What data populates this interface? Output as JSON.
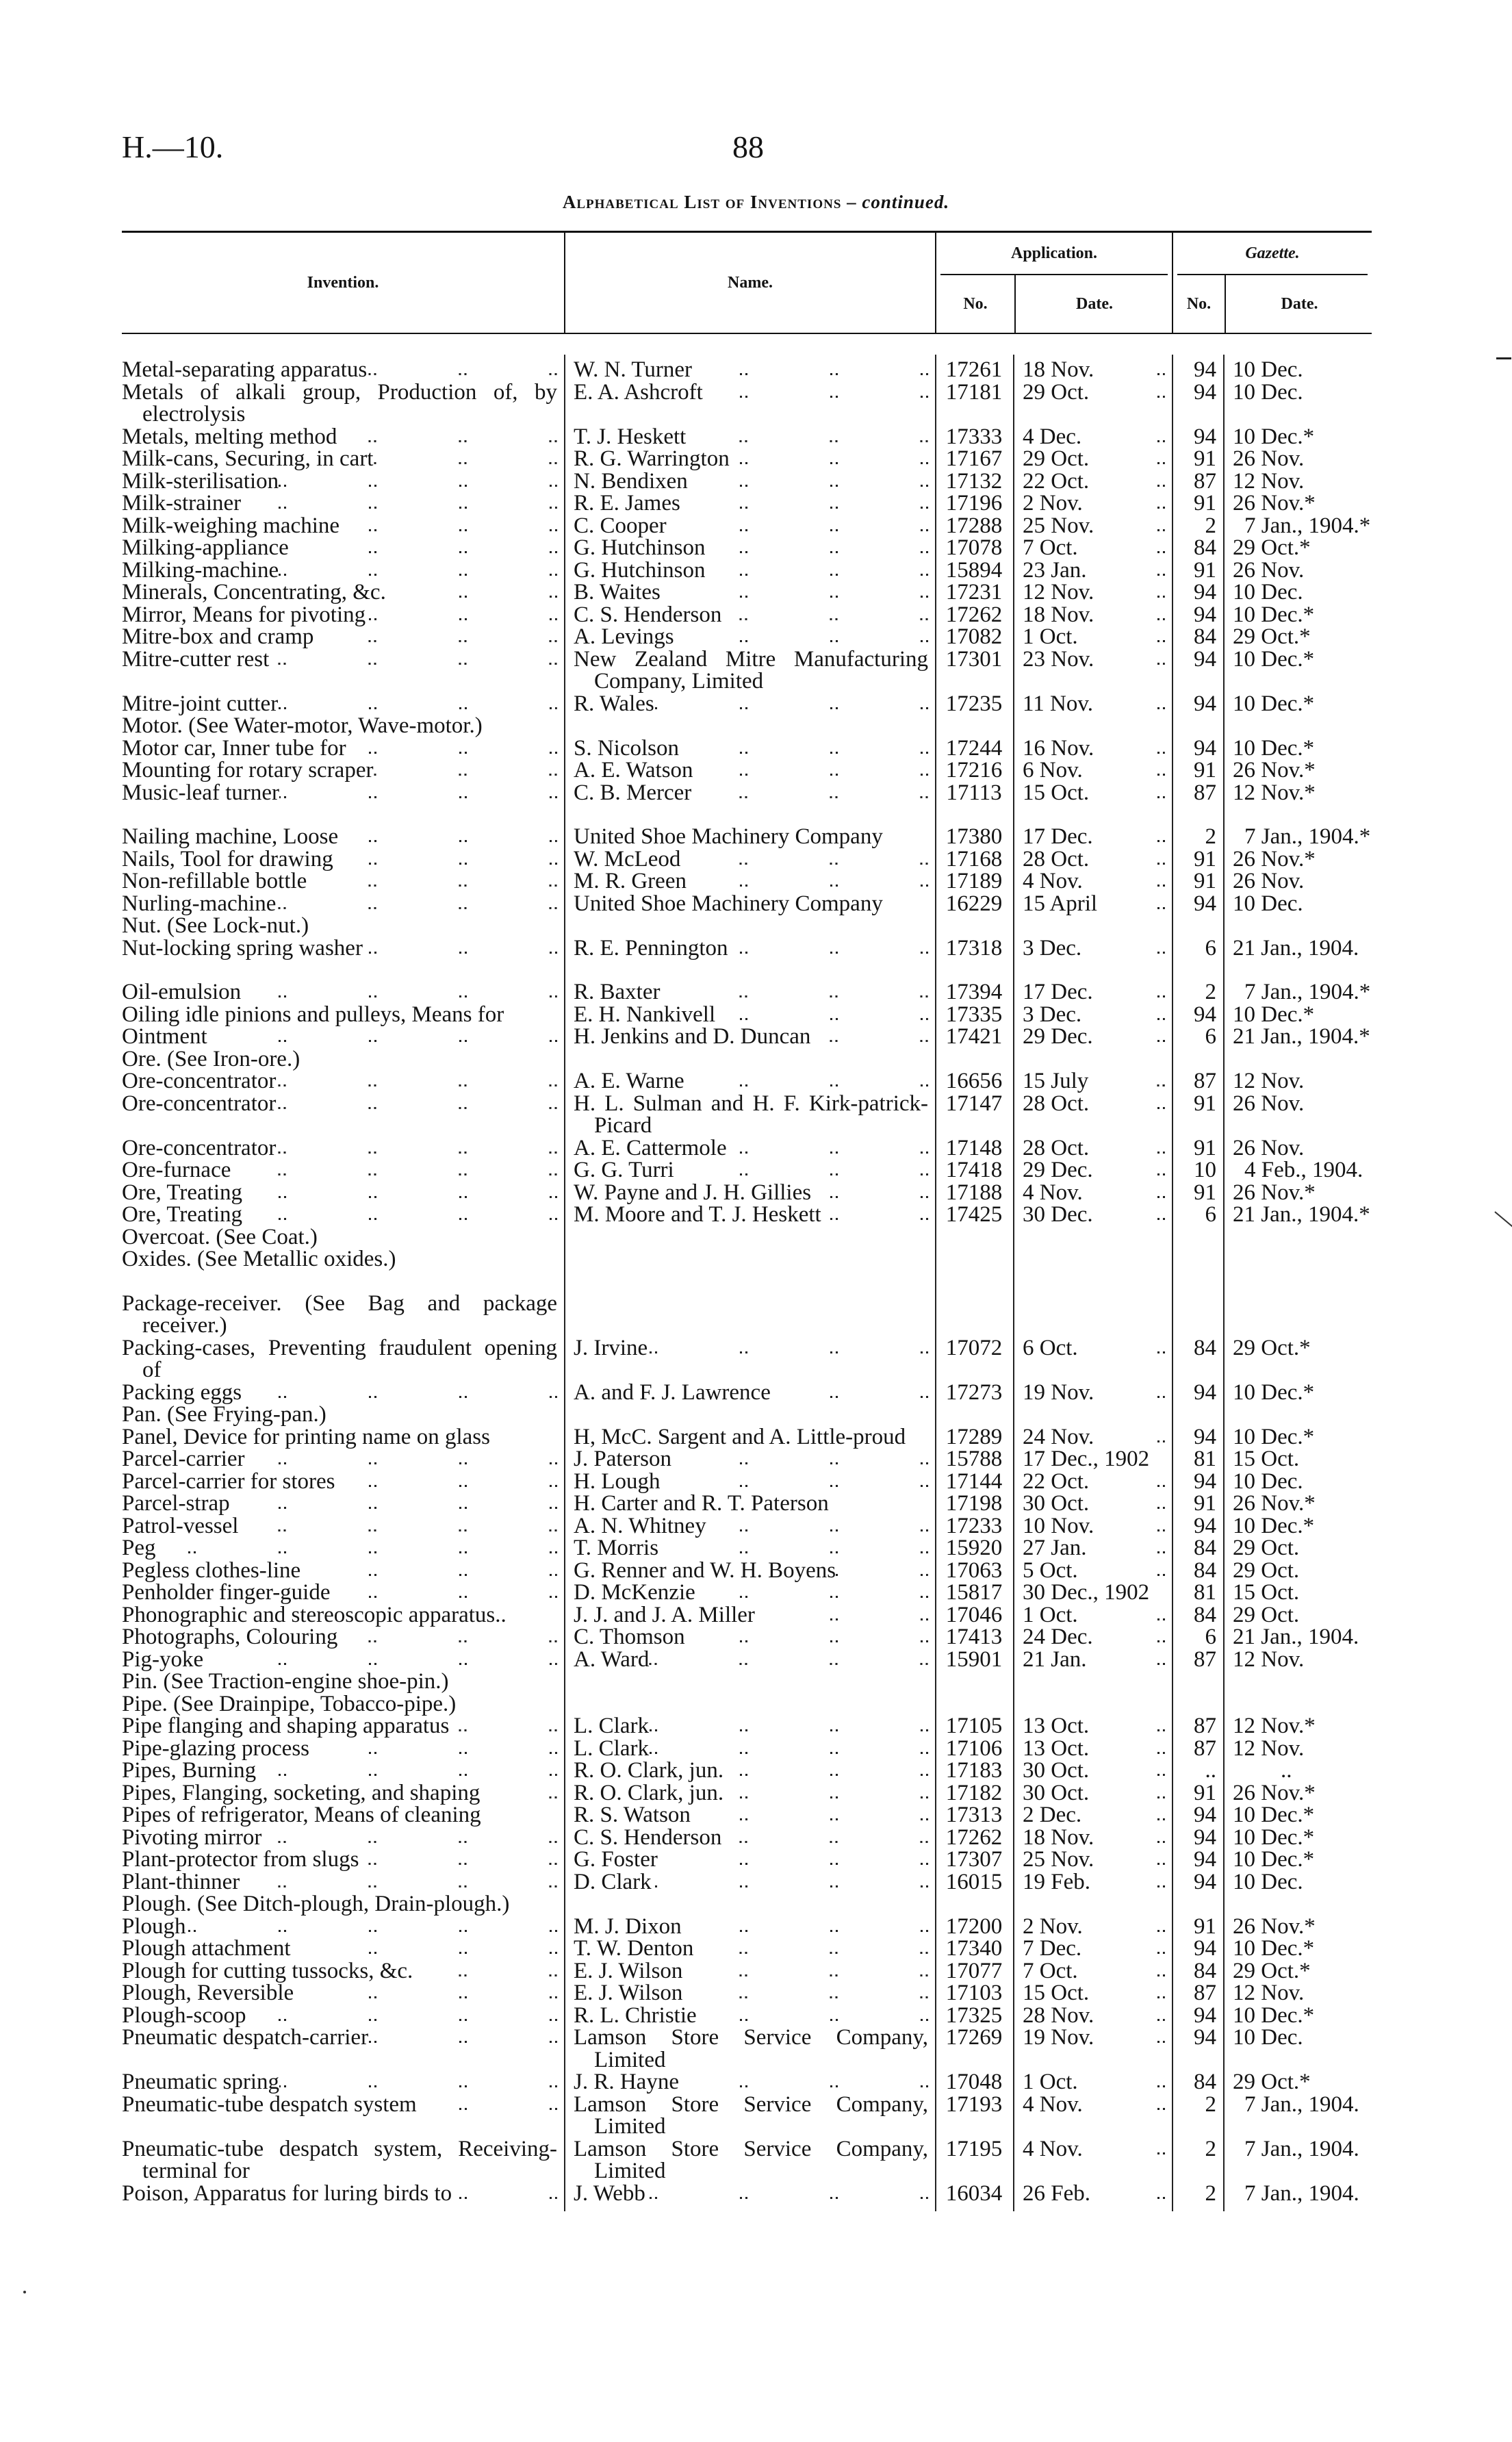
{
  "header": {
    "ref": "H.—10.",
    "page": "88"
  },
  "subtitle": {
    "main": "Alphabetical List of Inventions",
    "separator": " – ",
    "cont": "continued."
  },
  "columns": {
    "invention": "Invention.",
    "name": "Name.",
    "application": "Application.",
    "gazette": "Gazette.",
    "no": "No.",
    "date": "Date."
  },
  "groups": [
    {
      "rows": [
        {
          "invention": "Metal-separating apparatus",
          "name": "W. N. Turner",
          "app_no": "17261",
          "app_date": "18 Nov.",
          "gaz_no": "94",
          "gaz_date": "10 Dec."
        },
        {
          "invention": "Metals of alkali group, Production of, by electrolysis",
          "name": "E. A. Ashcroft",
          "app_no": "17181",
          "app_date": "29 Oct.",
          "gaz_no": "94",
          "gaz_date": "10 Dec."
        },
        {
          "invention": "Metals, melting method",
          "name": "T. J. Heskett",
          "app_no": "17333",
          "app_date": "4 Dec.",
          "gaz_no": "94",
          "gaz_date": "10 Dec.*"
        },
        {
          "invention": "Milk-cans, Securing, in cart",
          "name": "R. G. Warrington",
          "app_no": "17167",
          "app_date": "29 Oct.",
          "gaz_no": "91",
          "gaz_date": "26 Nov."
        },
        {
          "invention": "Milk-sterilisation",
          "name": "N. Bendixen",
          "app_no": "17132",
          "app_date": "22 Oct.",
          "gaz_no": "87",
          "gaz_date": "12 Nov."
        },
        {
          "invention": "Milk-strainer",
          "name": "R. E. James",
          "app_no": "17196",
          "app_date": "2 Nov.",
          "gaz_no": "91",
          "gaz_date": "26 Nov.*"
        },
        {
          "invention": "Milk-weighing machine",
          "name": "C. Cooper",
          "app_no": "17288",
          "app_date": "25 Nov.",
          "gaz_no": "2",
          "gaz_date": "7 Jan., 1904.*"
        },
        {
          "invention": "Milking-appliance",
          "name": "G. Hutchinson",
          "app_no": "17078",
          "app_date": "7 Oct.",
          "gaz_no": "84",
          "gaz_date": "29 Oct.*"
        },
        {
          "invention": "Milking-machine",
          "name": "G. Hutchinson",
          "app_no": "15894",
          "app_date": "23 Jan.",
          "gaz_no": "91",
          "gaz_date": "26 Nov."
        },
        {
          "invention": "Minerals, Concentrating, &c.",
          "name": "B. Waites",
          "app_no": "17231",
          "app_date": "12 Nov.",
          "gaz_no": "94",
          "gaz_date": "10 Dec."
        },
        {
          "invention": "Mirror, Means for pivoting",
          "name": "C. S. Henderson",
          "app_no": "17262",
          "app_date": "18 Nov.",
          "gaz_no": "94",
          "gaz_date": "10 Dec.*"
        },
        {
          "invention": "Mitre-box and cramp",
          "name": "A. Levings",
          "app_no": "17082",
          "app_date": "1 Oct.",
          "gaz_no": "84",
          "gaz_date": "29 Oct.*"
        },
        {
          "invention": "Mitre-cutter rest",
          "name": "New Zealand Mitre Manufacturing Company, Limited",
          "app_no": "17301",
          "app_date": "23 Nov.",
          "gaz_no": "94",
          "gaz_date": "10 Dec.*"
        },
        {
          "invention": "Mitre-joint cutter",
          "name": "R. Wales",
          "app_no": "17235",
          "app_date": "11 Nov.",
          "gaz_no": "94",
          "gaz_date": "10 Dec.*"
        },
        {
          "invention": "Motor. (See Water-motor, Wave-motor.)"
        },
        {
          "invention": "Motor car, Inner tube for",
          "name": "S. Nicolson",
          "app_no": "17244",
          "app_date": "16 Nov.",
          "gaz_no": "94",
          "gaz_date": "10 Dec.*"
        },
        {
          "invention": "Mounting for rotary scraper",
          "name": "A. E. Watson",
          "app_no": "17216",
          "app_date": "6 Nov.",
          "gaz_no": "91",
          "gaz_date": "26 Nov.*"
        },
        {
          "invention": "Music-leaf turner",
          "name": "C. B. Mercer",
          "app_no": "17113",
          "app_date": "15 Oct.",
          "gaz_no": "87",
          "gaz_date": "12 Nov.*"
        }
      ]
    },
    {
      "rows": [
        {
          "invention": "Nailing machine, Loose",
          "name": "United Shoe Machinery Company",
          "app_no": "17380",
          "app_date": "17 Dec.",
          "gaz_no": "2",
          "gaz_date": "7 Jan., 1904.*"
        },
        {
          "invention": "Nails, Tool for drawing",
          "name": "W. McLeod",
          "app_no": "17168",
          "app_date": "28 Oct.",
          "gaz_no": "91",
          "gaz_date": "26 Nov.*"
        },
        {
          "invention": "Non-refillable bottle",
          "name": "M. R. Green",
          "app_no": "17189",
          "app_date": "4 Nov.",
          "gaz_no": "91",
          "gaz_date": "26 Nov."
        },
        {
          "invention": "Nurling-machine",
          "name": "United Shoe Machinery Company",
          "app_no": "16229",
          "app_date": "15 April",
          "gaz_no": "94",
          "gaz_date": "10 Dec."
        },
        {
          "invention": "Nut. (See Lock-nut.)"
        },
        {
          "invention": "Nut-locking spring washer",
          "name": "R. E. Pennington",
          "app_no": "17318",
          "app_date": "3 Dec.",
          "gaz_no": "6",
          "gaz_date": "21 Jan., 1904."
        }
      ]
    },
    {
      "rows": [
        {
          "invention": "Oil-emulsion",
          "name": "R. Baxter",
          "app_no": "17394",
          "app_date": "17 Dec.",
          "gaz_no": "2",
          "gaz_date": "7 Jan., 1904.*"
        },
        {
          "invention": "Oiling idle pinions and pulleys, Means for",
          "name": "E. H. Nankivell",
          "app_no": "17335",
          "app_date": "3 Dec.",
          "gaz_no": "94",
          "gaz_date": "10 Dec.*"
        },
        {
          "invention": "Ointment",
          "name": "H. Jenkins and D. Duncan",
          "app_no": "17421",
          "app_date": "29 Dec.",
          "gaz_no": "6",
          "gaz_date": "21 Jan., 1904.*"
        },
        {
          "invention": "Ore. (See Iron-ore.)"
        },
        {
          "invention": "Ore-concentrator",
          "name": "A. E. Warne",
          "app_no": "16656",
          "app_date": "15 July",
          "gaz_no": "87",
          "gaz_date": "12 Nov."
        },
        {
          "invention": "Ore-concentrator",
          "name": "H. L. Sulman and H. F. Kirk-patrick-Picard",
          "app_no": "17147",
          "app_date": "28 Oct.",
          "gaz_no": "91",
          "gaz_date": "26 Nov."
        },
        {
          "invention": "Ore-concentrator",
          "name": "A. E. Cattermole",
          "app_no": "17148",
          "app_date": "28 Oct.",
          "gaz_no": "91",
          "gaz_date": "26 Nov."
        },
        {
          "invention": "Ore-furnace",
          "name": "G. G. Turri",
          "app_no": "17418",
          "app_date": "29 Dec.",
          "gaz_no": "10",
          "gaz_date": "4 Feb., 1904."
        },
        {
          "invention": "Ore, Treating",
          "name": "W. Payne and J. H. Gillies",
          "app_no": "17188",
          "app_date": "4 Nov.",
          "gaz_no": "91",
          "gaz_date": "26 Nov.*"
        },
        {
          "invention": "Ore, Treating",
          "name": "M. Moore and T. J. Heskett",
          "app_no": "17425",
          "app_date": "30 Dec.",
          "gaz_no": "6",
          "gaz_date": "21 Jan., 1904.*"
        },
        {
          "invention": "Overcoat. (See Coat.)"
        },
        {
          "invention": "Oxides. (See Metallic oxides.)"
        }
      ]
    },
    {
      "rows": [
        {
          "invention": "Package-receiver. (See Bag and package receiver.)"
        },
        {
          "invention": "Packing-cases, Preventing fraudulent opening of",
          "name": "J. Irvine",
          "app_no": "17072",
          "app_date": "6 Oct.",
          "gaz_no": "84",
          "gaz_date": "29 Oct.*"
        },
        {
          "invention": "Packing eggs",
          "name": "A. and F. J. Lawrence",
          "app_no": "17273",
          "app_date": "19 Nov.",
          "gaz_no": "94",
          "gaz_date": "10 Dec.*"
        },
        {
          "invention": "Pan. (See Frying-pan.)"
        },
        {
          "invention": "Panel, Device for printing name on glass",
          "name": "H, McC. Sargent and A. Little-proud",
          "app_no": "17289",
          "app_date": "24 Nov.",
          "gaz_no": "94",
          "gaz_date": "10 Dec.*"
        },
        {
          "invention": "Parcel-carrier",
          "name": "J. Paterson",
          "app_no": "15788",
          "app_date": "17 Dec., 1902",
          "gaz_no": "81",
          "gaz_date": "15 Oct."
        },
        {
          "invention": "Parcel-carrier for stores",
          "name": "H. Lough",
          "app_no": "17144",
          "app_date": "22 Oct.",
          "gaz_no": "94",
          "gaz_date": "10 Dec."
        },
        {
          "invention": "Parcel-strap",
          "name": "H. Carter and R. T. Paterson",
          "app_no": "17198",
          "app_date": "30 Oct.",
          "gaz_no": "91",
          "gaz_date": "26 Nov.*"
        },
        {
          "invention": "Patrol-vessel",
          "name": "A. N. Whitney",
          "app_no": "17233",
          "app_date": "10 Nov.",
          "gaz_no": "94",
          "gaz_date": "10 Dec.*"
        },
        {
          "invention": "Peg",
          "name": "T. Morris",
          "app_no": "15920",
          "app_date": "27 Jan.",
          "gaz_no": "84",
          "gaz_date": "29 Oct."
        },
        {
          "invention": "Pegless clothes-line",
          "name": "G. Renner and W. H. Boyens",
          "app_no": "17063",
          "app_date": "5 Oct.",
          "gaz_no": "84",
          "gaz_date": "29 Oct."
        },
        {
          "invention": "Penholder finger-guide",
          "name": "D. McKenzie",
          "app_no": "15817",
          "app_date": "30 Dec., 1902",
          "gaz_no": "81",
          "gaz_date": "15 Oct."
        },
        {
          "invention": "Phonographic and stereoscopic apparatus..",
          "name": "J. J. and J. A. Miller",
          "app_no": "17046",
          "app_date": "1 Oct.",
          "gaz_no": "84",
          "gaz_date": "29 Oct."
        },
        {
          "invention": "Photographs, Colouring",
          "name": "C. Thomson",
          "app_no": "17413",
          "app_date": "24 Dec.",
          "gaz_no": "6",
          "gaz_date": "21 Jan., 1904."
        },
        {
          "invention": "Pig-yoke",
          "name": "A. Ward",
          "app_no": "15901",
          "app_date": "21 Jan.",
          "gaz_no": "87",
          "gaz_date": "12 Nov."
        },
        {
          "invention": "Pin. (See Traction-engine shoe-pin.)"
        },
        {
          "invention": "Pipe. (See Drainpipe, Tobacco-pipe.)"
        },
        {
          "invention": "Pipe flanging and shaping apparatus",
          "name": "L. Clark",
          "app_no": "17105",
          "app_date": "13 Oct.",
          "gaz_no": "87",
          "gaz_date": "12 Nov.*"
        },
        {
          "invention": "Pipe-glazing process",
          "name": "L. Clark",
          "app_no": "17106",
          "app_date": "13 Oct.",
          "gaz_no": "87",
          "gaz_date": "12 Nov."
        },
        {
          "invention": "Pipes, Burning",
          "name": "R. O. Clark, jun.",
          "app_no": "17183",
          "app_date": "30 Oct.",
          "gaz_no": "..",
          "gaz_date": ".."
        },
        {
          "invention": "Pipes, Flanging, socketing, and shaping",
          "name": "R. O. Clark, jun.",
          "app_no": "17182",
          "app_date": "30 Oct.",
          "gaz_no": "91",
          "gaz_date": "26 Nov.*"
        },
        {
          "invention": "Pipes of refrigerator, Means of cleaning",
          "name": "R. S. Watson",
          "app_no": "17313",
          "app_date": "2 Dec.",
          "gaz_no": "94",
          "gaz_date": "10 Dec.*"
        },
        {
          "invention": "Pivoting mirror",
          "name": "C. S. Henderson",
          "app_no": "17262",
          "app_date": "18 Nov.",
          "gaz_no": "94",
          "gaz_date": "10 Dec.*"
        },
        {
          "invention": "Plant-protector from slugs",
          "name": "G. Foster",
          "app_no": "17307",
          "app_date": "25 Nov.",
          "gaz_no": "94",
          "gaz_date": "10 Dec.*"
        },
        {
          "invention": "Plant-thinner",
          "name": "D. Clark",
          "app_no": "16015",
          "app_date": "19 Feb.",
          "gaz_no": "94",
          "gaz_date": "10 Dec."
        },
        {
          "invention": "Plough. (See Ditch-plough, Drain-plough.)"
        },
        {
          "invention": "Plough",
          "name": "M. J. Dixon",
          "app_no": "17200",
          "app_date": "2 Nov.",
          "gaz_no": "91",
          "gaz_date": "26 Nov.*"
        },
        {
          "invention": "Plough attachment",
          "name": "T. W. Denton",
          "app_no": "17340",
          "app_date": "7 Dec.",
          "gaz_no": "94",
          "gaz_date": "10 Dec.*"
        },
        {
          "invention": "Plough for cutting tussocks, &c.",
          "name": "E. J. Wilson",
          "app_no": "17077",
          "app_date": "7 Oct.",
          "gaz_no": "84",
          "gaz_date": "29 Oct.*"
        },
        {
          "invention": "Plough, Reversible",
          "name": "E. J. Wilson",
          "app_no": "17103",
          "app_date": "15 Oct.",
          "gaz_no": "87",
          "gaz_date": "12 Nov."
        },
        {
          "invention": "Plough-scoop",
          "name": "R. L. Christie",
          "app_no": "17325",
          "app_date": "28 Nov.",
          "gaz_no": "94",
          "gaz_date": "10 Dec.*"
        },
        {
          "invention": "Pneumatic despatch-carrier",
          "name": "Lamson Store Service Company, Limited",
          "app_no": "17269",
          "app_date": "19 Nov.",
          "gaz_no": "94",
          "gaz_date": "10 Dec."
        },
        {
          "invention": "Pneumatic spring",
          "name": "J. R. Hayne",
          "app_no": "17048",
          "app_date": "1 Oct.",
          "gaz_no": "84",
          "gaz_date": "29 Oct.*"
        },
        {
          "invention": "Pneumatic-tube despatch system",
          "name": "Lamson Store Service Company, Limited",
          "app_no": "17193",
          "app_date": "4 Nov.",
          "gaz_no": "2",
          "gaz_date": "7 Jan., 1904."
        },
        {
          "invention": "Pneumatic-tube despatch system, Receiving-terminal for",
          "name": "Lamson Store Service Company, Limited",
          "app_no": "17195",
          "app_date": "4 Nov.",
          "gaz_no": "2",
          "gaz_date": "7 Jan., 1904."
        },
        {
          "invention": "Poison, Apparatus for luring birds to",
          "name": "J. Webb",
          "app_no": "16034",
          "app_date": "26 Feb.",
          "gaz_no": "2",
          "gaz_date": "7 Jan., 1904."
        }
      ]
    }
  ]
}
